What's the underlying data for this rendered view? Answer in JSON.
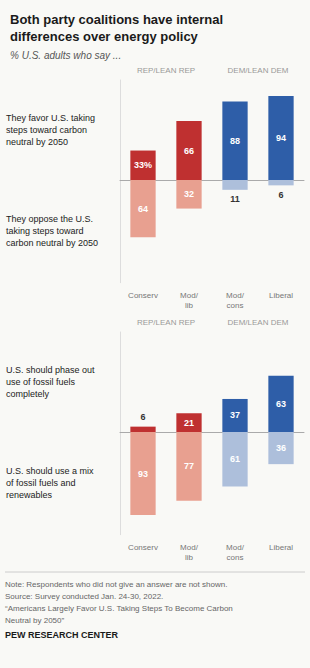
{
  "title": "Both party coalitions have internal\ndifferences over energy policy",
  "subtitle": "% U.S. adults who say ...",
  "note": [
    "Note: Respondents who did not give an answer are not shown.",
    "Source: Survey conducted Jan. 24-30, 2022.",
    "“Americans Largely Favor U.S. Taking Steps To Become Carbon",
    "Neutral by 2050”"
  ],
  "source": "PEW RESEARCH CENTER",
  "chart_data": [
    {
      "type": "bar",
      "categories": [
        "Conserv",
        "Mod/\nlib",
        "Mod/\ncons",
        "Liberal"
      ],
      "annotations": [
        "REP/LEAN REP",
        "DEM/LEAN DEM"
      ],
      "ylim": [
        0,
        112
      ],
      "y2lim": [
        0,
        115
      ],
      "grid": false,
      "tick_labels": "x",
      "data_labels": true,
      "series": [
        {
          "name": "They favor U.S. taking\nsteps toward carbon\nneutral by 2050",
          "values": [
            33,
            66,
            88,
            94
          ],
          "value_labels": [
            "33%",
            "66",
            "88",
            "94"
          ],
          "colors": [
            "#bf3030",
            "#bf3030",
            "#2e5ea8",
            "#2e5ea8"
          ]
        },
        {
          "name": "They oppose the U.S.\ntaking steps toward\ncarbon neutral by 2050",
          "values": [
            64,
            32,
            11,
            6
          ],
          "colors": [
            "#e8a090",
            "#e8a090",
            "#adbfdb",
            "#adbfdb"
          ],
          "axis": "y2"
        }
      ]
    },
    {
      "type": "bar",
      "categories": [
        "Conserv",
        "Mod/\nlib",
        "Mod/\ncons",
        "Liberal"
      ],
      "annotations": [
        "REP/LEAN REP",
        "DEM/LEAN DEM"
      ],
      "ylim": [
        0,
        112
      ],
      "y2lim": [
        0,
        115
      ],
      "grid": false,
      "tick_labels": "x",
      "data_labels": true,
      "series": [
        {
          "name": "U.S. should phase out\nuse of fossil fuels\ncompletely",
          "values": [
            6,
            21,
            37,
            63
          ],
          "colors": [
            "#bf3030",
            "#bf3030",
            "#2e5ea8",
            "#2e5ea8"
          ]
        },
        {
          "name": "U.S. should use a mix\nof fossil fuels and\nrenewables",
          "values": [
            93,
            77,
            61,
            36
          ],
          "colors": [
            "#e8a090",
            "#e8a090",
            "#adbfdb",
            "#adbfdb"
          ],
          "axis": "y2"
        }
      ]
    }
  ]
}
